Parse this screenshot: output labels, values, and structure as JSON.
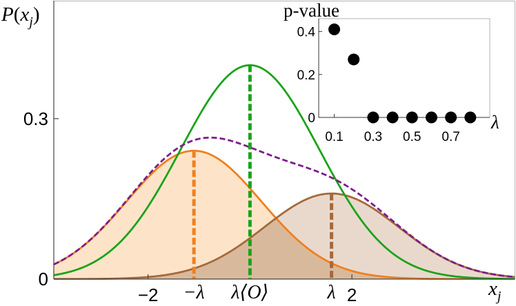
{
  "chart_data": [
    {
      "type": "area",
      "title": "",
      "ylabel": "P(x_j)",
      "xlabel": "x_j",
      "ylabel_display": {
        "P": "P",
        "open": "(",
        "x": "x",
        "sub": "j",
        "close": ")"
      },
      "xlabel_display": {
        "x": "x",
        "sub": "j"
      },
      "xlim": [
        -3.85,
        5.2
      ],
      "ylim": [
        0,
        0.52
      ],
      "x_ticks": [
        {
          "value": -2,
          "label": "−2"
        },
        {
          "value": 2,
          "label": "2"
        }
      ],
      "y_ticks": [
        {
          "value": 0,
          "label": "0"
        },
        {
          "value": 0.3,
          "label": "0.3"
        }
      ],
      "x_markers": [
        {
          "value": -1.1,
          "label": "−λ"
        },
        {
          "value": 0.0,
          "label": "λ⟨O⟩"
        },
        {
          "value": 1.6,
          "label": "λ"
        }
      ],
      "series": [
        {
          "kind": "gaussian",
          "mean": -1.1,
          "sigma": 1.32,
          "amplitude": 0.24,
          "stroke": "#f0801e",
          "fill": "#fde4c9",
          "dashed": false,
          "marker_line": true
        },
        {
          "kind": "gaussian",
          "mean": 1.6,
          "sigma": 1.32,
          "amplitude": 0.16,
          "stroke": "#a6693b",
          "fill": "#e9d9cd",
          "dashed": false,
          "marker_line": true
        },
        {
          "kind": "gaussian",
          "mean": 0.0,
          "sigma": 1.36,
          "amplitude": 0.4,
          "stroke": "#1ba31b",
          "fill": "none",
          "dashed": false,
          "marker_line": true
        },
        {
          "kind": "mixture",
          "components": [
            0,
            1
          ],
          "stroke": "#7b1f8a",
          "fill": "none",
          "dashed": true,
          "marker_line": false
        }
      ],
      "overlap_fill": "#d9b99c",
      "grid": false,
      "legend": "none"
    },
    {
      "type": "scatter",
      "title": "p-value",
      "xlabel": "λ",
      "ylabel": "",
      "xlim": [
        0.02,
        0.9
      ],
      "ylim": [
        0,
        0.46
      ],
      "x_ticks": [
        {
          "value": 0.1,
          "label": "0.1"
        },
        {
          "value": 0.3,
          "label": "0.3"
        },
        {
          "value": 0.5,
          "label": "0.5"
        },
        {
          "value": 0.7,
          "label": "0.7"
        }
      ],
      "y_ticks": [
        {
          "value": 0,
          "label": "0"
        },
        {
          "value": 0.2,
          "label": "0.2"
        },
        {
          "value": 0.4,
          "label": "0.4"
        }
      ],
      "x": [
        0.1,
        0.2,
        0.3,
        0.4,
        0.5,
        0.6,
        0.7,
        0.8
      ],
      "y": [
        0.41,
        0.27,
        0.0,
        0.0,
        0.0,
        0.0,
        0.0,
        0.0
      ],
      "marker_color": "#000000",
      "grid": false,
      "legend": "none"
    }
  ]
}
